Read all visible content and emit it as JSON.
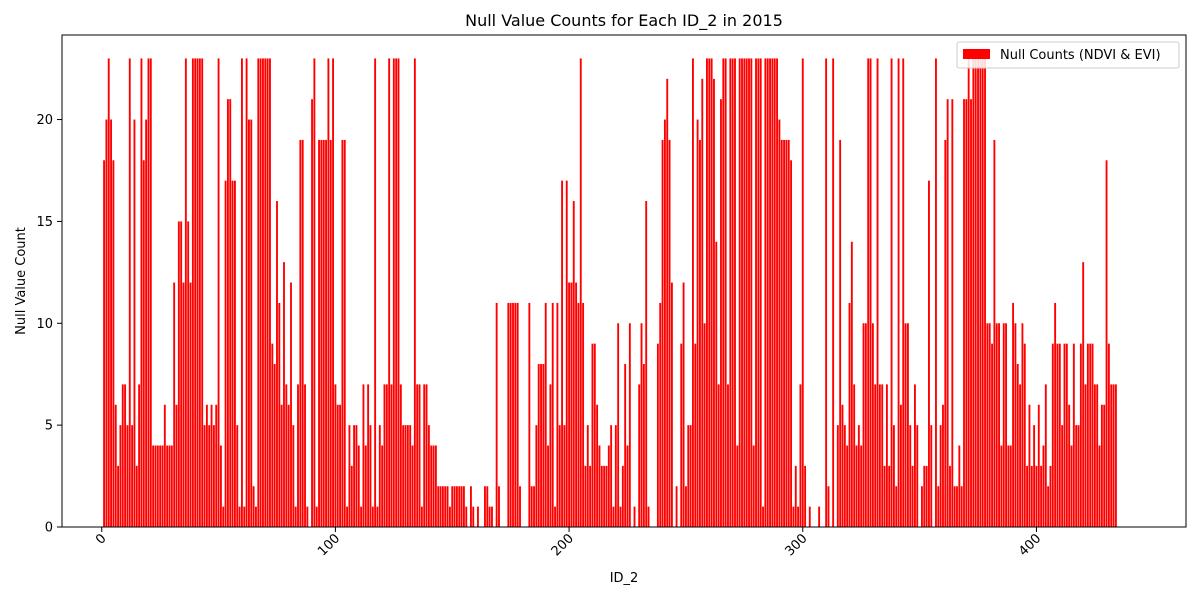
{
  "chart_data": {
    "type": "bar",
    "title": "Null Value Counts for Each ID_2 in 2015",
    "xlabel": "ID_2",
    "ylabel": "Null Value Count",
    "xlim": [
      -17,
      464
    ],
    "ylim": [
      0,
      24.15
    ],
    "xticks": [
      0,
      100,
      200,
      300,
      400
    ],
    "yticks": [
      0,
      5,
      10,
      15,
      20
    ],
    "grid": false,
    "legend_position": "upper-right",
    "bar_color": "#ff0000",
    "series": [
      {
        "name": "Null Counts (NDVI & EVI)",
        "x_start": 1,
        "values": [
          18,
          20,
          23,
          20,
          18,
          6,
          3,
          5,
          7,
          7,
          5,
          23,
          5,
          20,
          3,
          7,
          23,
          18,
          20,
          23,
          23,
          4,
          4,
          4,
          4,
          4,
          6,
          4,
          4,
          4,
          12,
          6,
          15,
          15,
          12,
          23,
          15,
          12,
          23,
          23,
          23,
          23,
          23,
          5,
          6,
          5,
          6,
          5,
          6,
          23,
          4,
          1,
          17,
          21,
          21,
          17,
          17,
          5,
          1,
          23,
          1,
          23,
          20,
          20,
          2,
          1,
          23,
          23,
          23,
          23,
          23,
          23,
          9,
          8,
          16,
          11,
          6,
          13,
          7,
          6,
          12,
          5,
          1,
          7,
          19,
          19,
          7,
          1,
          0,
          21,
          23,
          1,
          19,
          19,
          19,
          19,
          23,
          19,
          23,
          7,
          6,
          6,
          19,
          19,
          1,
          5,
          3,
          5,
          5,
          4,
          1,
          7,
          4,
          7,
          5,
          1,
          23,
          1,
          5,
          4,
          7,
          7,
          23,
          7,
          23,
          23,
          23,
          7,
          5,
          5,
          5,
          5,
          4,
          23,
          7,
          7,
          1,
          7,
          7,
          5,
          4,
          4,
          4,
          2,
          2,
          2,
          2,
          2,
          1,
          2,
          2,
          2,
          2,
          2,
          2,
          1,
          0,
          2,
          1,
          0,
          1,
          0,
          0,
          2,
          2,
          1,
          1,
          0,
          11,
          2,
          0,
          0,
          0,
          11,
          11,
          11,
          11,
          11,
          2,
          0,
          0,
          0,
          11,
          2,
          2,
          5,
          8,
          8,
          8,
          11,
          4,
          7,
          11,
          1,
          11,
          5,
          17,
          5,
          17,
          12,
          12,
          16,
          12,
          11,
          23,
          11,
          3,
          5,
          3,
          9,
          9,
          6,
          4,
          3,
          3,
          3,
          4,
          5,
          1,
          5,
          10,
          1,
          3,
          8,
          4,
          10,
          0,
          1,
          0,
          7,
          10,
          8,
          16,
          1,
          0,
          0,
          0,
          9,
          11,
          19,
          20,
          22,
          19,
          12,
          0,
          2,
          0,
          9,
          12,
          2,
          5,
          5,
          23,
          9,
          20,
          19,
          22,
          10,
          23,
          23,
          23,
          22,
          14,
          7,
          21,
          23,
          23,
          7,
          23,
          23,
          23,
          4,
          23,
          23,
          23,
          23,
          23,
          23,
          4,
          23,
          23,
          23,
          1,
          23,
          23,
          23,
          23,
          23,
          23,
          20,
          19,
          19,
          19,
          19,
          18,
          1,
          3,
          1,
          7,
          23,
          3,
          0,
          1,
          0,
          0,
          0,
          1,
          0,
          0,
          23,
          2,
          0,
          23,
          0,
          5,
          19,
          6,
          5,
          4,
          11,
          14,
          7,
          4,
          5,
          4,
          10,
          10,
          23,
          23,
          10,
          7,
          23,
          7,
          7,
          3,
          7,
          3,
          23,
          5,
          2,
          23,
          6,
          23,
          10,
          10,
          5,
          3,
          7,
          5,
          0,
          2,
          3,
          3,
          17,
          5,
          0,
          23,
          2,
          5,
          6,
          19,
          21,
          3,
          21,
          2,
          2,
          4,
          2,
          21,
          21,
          23,
          21,
          23,
          23,
          23,
          23,
          23,
          23,
          10,
          10,
          9,
          19,
          10,
          10,
          4,
          10,
          10,
          4,
          4,
          11,
          10,
          8,
          7,
          10,
          9,
          3,
          6,
          3,
          5,
          3,
          6,
          3,
          4,
          7,
          2,
          3,
          9,
          11,
          9,
          9,
          5,
          9,
          9,
          6,
          4,
          9,
          5,
          5,
          9,
          13,
          7,
          9,
          9,
          9,
          7,
          7,
          4,
          6,
          6,
          18,
          9,
          7,
          7,
          7
        ]
      }
    ]
  }
}
